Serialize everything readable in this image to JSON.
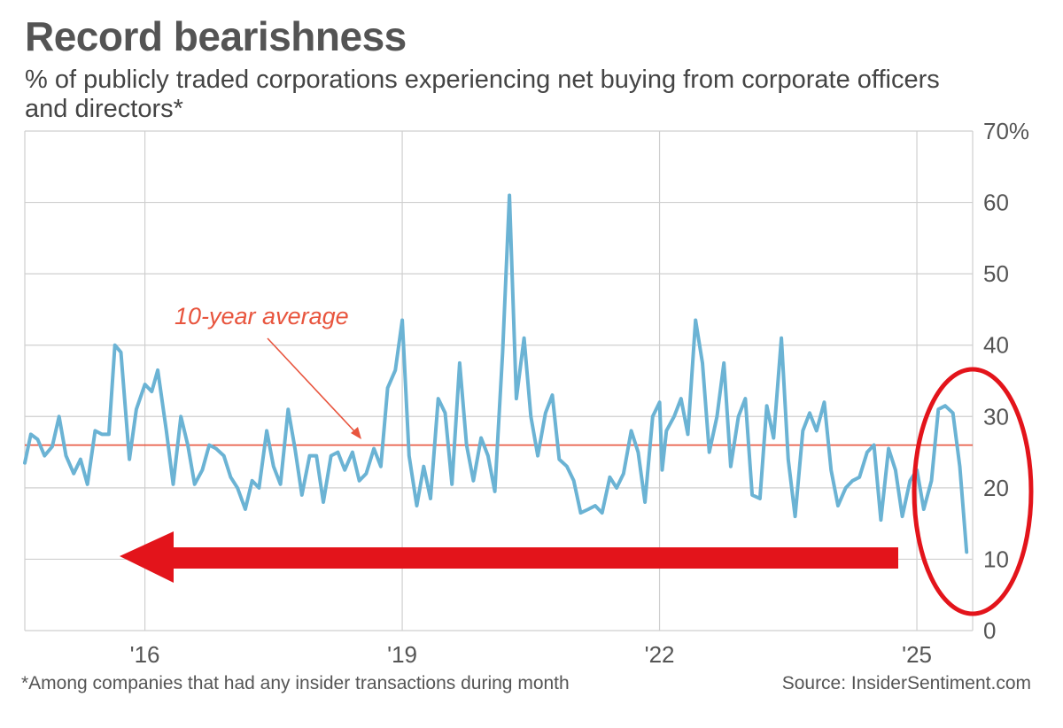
{
  "title": "Record bearishness",
  "subtitle": "% of publicly traded corporations experiencing net buying from corporate officers and directors*",
  "footnote": "*Among companies that had any insider transactions during month",
  "source": "Source: InsiderSentiment.com",
  "colors": {
    "line": "#6bb3d4",
    "average": "#e8553e",
    "grid": "#cfcfcf",
    "highlight": "#e3141b"
  },
  "chart_data": {
    "type": "line",
    "title": "Record bearishness",
    "xlabel": "",
    "ylabel": "",
    "ylim": [
      0,
      70
    ],
    "yticks": [
      0,
      10,
      20,
      30,
      40,
      50,
      60,
      70
    ],
    "ytick_labels": [
      "0",
      "10",
      "20",
      "30",
      "40",
      "50",
      "60",
      "70%"
    ],
    "xlim": [
      2014.6,
      2025.65
    ],
    "xticks": [
      2016,
      2019,
      2022,
      2025
    ],
    "xtick_labels": [
      "'16",
      "'19",
      "'22",
      "'25"
    ],
    "grid": true,
    "average": {
      "value": 26,
      "label": "10-year average"
    },
    "series": [
      {
        "values": [
          [
            2014.6,
            23.5
          ],
          [
            2014.67,
            27.5
          ],
          [
            2014.75,
            26.8
          ],
          [
            2014.83,
            24.5
          ],
          [
            2014.92,
            25.8
          ],
          [
            2015.0,
            30.0
          ],
          [
            2015.08,
            24.5
          ],
          [
            2015.17,
            22.0
          ],
          [
            2015.25,
            24.0
          ],
          [
            2015.33,
            20.5
          ],
          [
            2015.42,
            28.0
          ],
          [
            2015.5,
            27.5
          ],
          [
            2015.58,
            27.5
          ],
          [
            2015.65,
            40.0
          ],
          [
            2015.72,
            39.0
          ],
          [
            2015.82,
            24.0
          ],
          [
            2015.9,
            31.0
          ],
          [
            2016.0,
            34.5
          ],
          [
            2016.08,
            33.5
          ],
          [
            2016.15,
            36.5
          ],
          [
            2016.25,
            28.0
          ],
          [
            2016.33,
            20.5
          ],
          [
            2016.42,
            30.0
          ],
          [
            2016.5,
            26.0
          ],
          [
            2016.58,
            20.5
          ],
          [
            2016.67,
            22.5
          ],
          [
            2016.75,
            26.0
          ],
          [
            2016.83,
            25.5
          ],
          [
            2016.92,
            24.5
          ],
          [
            2017.0,
            21.5
          ],
          [
            2017.08,
            20.0
          ],
          [
            2017.17,
            17.0
          ],
          [
            2017.25,
            21.0
          ],
          [
            2017.33,
            20.0
          ],
          [
            2017.42,
            28.0
          ],
          [
            2017.5,
            23.0
          ],
          [
            2017.58,
            20.5
          ],
          [
            2017.67,
            31.0
          ],
          [
            2017.75,
            25.5
          ],
          [
            2017.83,
            19.0
          ],
          [
            2017.92,
            24.5
          ],
          [
            2018.0,
            24.5
          ],
          [
            2018.08,
            18.0
          ],
          [
            2018.17,
            24.5
          ],
          [
            2018.25,
            25.0
          ],
          [
            2018.33,
            22.5
          ],
          [
            2018.42,
            25.0
          ],
          [
            2018.5,
            21.0
          ],
          [
            2018.58,
            22.0
          ],
          [
            2018.67,
            25.5
          ],
          [
            2018.75,
            23.0
          ],
          [
            2018.83,
            34.0
          ],
          [
            2018.92,
            36.5
          ],
          [
            2019.0,
            43.5
          ],
          [
            2019.08,
            24.5
          ],
          [
            2019.17,
            17.5
          ],
          [
            2019.25,
            23.0
          ],
          [
            2019.33,
            18.5
          ],
          [
            2019.42,
            32.5
          ],
          [
            2019.5,
            30.5
          ],
          [
            2019.58,
            20.5
          ],
          [
            2019.67,
            37.5
          ],
          [
            2019.75,
            26.0
          ],
          [
            2019.83,
            21.0
          ],
          [
            2019.92,
            27.0
          ],
          [
            2020.0,
            24.5
          ],
          [
            2020.08,
            19.5
          ],
          [
            2020.17,
            39.0
          ],
          [
            2020.25,
            61.0
          ],
          [
            2020.33,
            32.5
          ],
          [
            2020.42,
            41.0
          ],
          [
            2020.5,
            30.0
          ],
          [
            2020.58,
            24.5
          ],
          [
            2020.67,
            30.5
          ],
          [
            2020.75,
            33.0
          ],
          [
            2020.83,
            24.0
          ],
          [
            2020.92,
            23.0
          ],
          [
            2021.0,
            21.0
          ],
          [
            2021.08,
            16.5
          ],
          [
            2021.17,
            17.0
          ],
          [
            2021.25,
            17.5
          ],
          [
            2021.33,
            16.5
          ],
          [
            2021.42,
            21.5
          ],
          [
            2021.5,
            20.0
          ],
          [
            2021.58,
            22.0
          ],
          [
            2021.67,
            28.0
          ],
          [
            2021.75,
            25.0
          ],
          [
            2021.83,
            18.0
          ],
          [
            2021.92,
            30.0
          ],
          [
            2022.0,
            32.0
          ],
          [
            2022.03,
            22.5
          ],
          [
            2022.08,
            28.0
          ],
          [
            2022.17,
            30.0
          ],
          [
            2022.25,
            32.5
          ],
          [
            2022.33,
            27.5
          ],
          [
            2022.42,
            43.5
          ],
          [
            2022.5,
            37.5
          ],
          [
            2022.58,
            25.0
          ],
          [
            2022.67,
            30.0
          ],
          [
            2022.75,
            37.5
          ],
          [
            2022.83,
            23.0
          ],
          [
            2022.92,
            30.0
          ],
          [
            2023.0,
            32.5
          ],
          [
            2023.08,
            19.0
          ],
          [
            2023.17,
            18.5
          ],
          [
            2023.25,
            31.5
          ],
          [
            2023.33,
            27.0
          ],
          [
            2023.42,
            41.0
          ],
          [
            2023.5,
            24.0
          ],
          [
            2023.58,
            16.0
          ],
          [
            2023.67,
            28.0
          ],
          [
            2023.75,
            30.5
          ],
          [
            2023.83,
            28.0
          ],
          [
            2023.92,
            32.0
          ],
          [
            2024.0,
            22.5
          ],
          [
            2024.08,
            17.5
          ],
          [
            2024.17,
            20.0
          ],
          [
            2024.25,
            21.0
          ],
          [
            2024.33,
            21.5
          ],
          [
            2024.42,
            25.0
          ],
          [
            2024.5,
            26.0
          ],
          [
            2024.58,
            15.5
          ],
          [
            2024.67,
            25.5
          ],
          [
            2024.75,
            22.5
          ],
          [
            2024.83,
            16.0
          ],
          [
            2024.92,
            21.0
          ],
          [
            2025.0,
            22.5
          ],
          [
            2025.08,
            17.0
          ],
          [
            2025.17,
            21.0
          ],
          [
            2025.25,
            31.0
          ],
          [
            2025.33,
            31.5
          ],
          [
            2025.42,
            30.5
          ],
          [
            2025.5,
            23.0
          ],
          [
            2025.58,
            11.0
          ]
        ]
      }
    ]
  }
}
